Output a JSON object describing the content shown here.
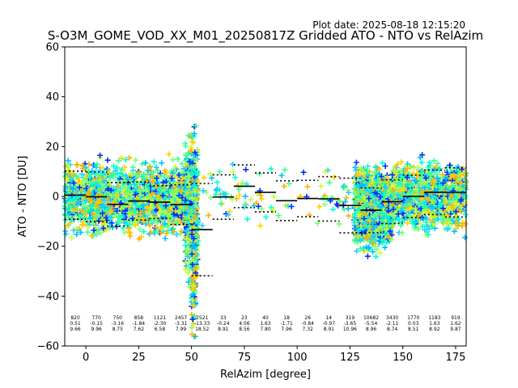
{
  "chart_data": {
    "type": "scatter",
    "plot_date": "Plot date: 2025-08-18 12:15:20",
    "title": "S-O3M_GOME_VOD_XX_M01_20250817Z Gridded ATO - NTO vs RelAzim",
    "xlabel": "RelAzim [degree]",
    "ylabel": "ATO - NTO [DU]",
    "xlim": [
      -10,
      180
    ],
    "ylim": [
      -60,
      60
    ],
    "xticks": [
      0,
      25,
      50,
      75,
      100,
      125,
      150,
      175
    ],
    "yticks": [
      -60,
      -40,
      -20,
      0,
      20,
      40,
      60
    ],
    "grid": false,
    "marker": "plus",
    "point_colors": [
      "#40ff90",
      "#80ff70",
      "#20d0ff",
      "#c0ff40",
      "#ffd000",
      "#ffb000",
      "#00c0ff",
      "#0030ff",
      "#00ffd0"
    ],
    "bins": [
      {
        "center": -5,
        "count": "820",
        "mean": "0.51",
        "std": "9.66"
      },
      {
        "center": 5,
        "count": "770",
        "mean": "-0.15",
        "std": "9.96"
      },
      {
        "center": 15,
        "count": "750",
        "mean": "-3.16",
        "std": "8.75"
      },
      {
        "center": 25,
        "count": "858",
        "mean": "-1.84",
        "std": "7.62"
      },
      {
        "center": 35,
        "count": "1121",
        "mean": "-2.30",
        "std": "6.58"
      },
      {
        "center": 45,
        "count": "2457",
        "mean": "-3.31",
        "std": "7.99"
      },
      {
        "center": 55,
        "count": "2521",
        "mean": "-13.33",
        "std": "18.52"
      },
      {
        "center": 65,
        "count": "33",
        "mean": "-0.24",
        "std": "8.91"
      },
      {
        "center": 75,
        "count": "23",
        "mean": "4.06",
        "std": "8.56"
      },
      {
        "center": 85,
        "count": "40",
        "mean": "1.63",
        "std": "7.80"
      },
      {
        "center": 95,
        "count": "18",
        "mean": "-1.71",
        "std": "7.96"
      },
      {
        "center": 105,
        "count": "26",
        "mean": "-0.84",
        "std": "7.32"
      },
      {
        "center": 115,
        "count": "14",
        "mean": "-0.97",
        "std": "8.91"
      },
      {
        "center": 125,
        "count": "319",
        "mean": "-3.65",
        "std": "10.96"
      },
      {
        "center": 135,
        "count": "10682",
        "mean": "-5.54",
        "std": "8.96"
      },
      {
        "center": 145,
        "count": "3430",
        "mean": "-2.11",
        "std": "8.74"
      },
      {
        "center": 155,
        "count": "1770",
        "mean": "0.03",
        "std": "8.51"
      },
      {
        "center": 165,
        "count": "1183",
        "mean": "1.63",
        "std": "8.92"
      },
      {
        "center": 175,
        "count": "919",
        "mean": "1.62",
        "std": "9.87"
      }
    ],
    "clusters": [
      {
        "x": [
          -10,
          48
        ],
        "y_mean": -1,
        "y_spread": 11,
        "n": 1600
      },
      {
        "x": [
          47,
          53
        ],
        "y_mean": -5,
        "y_spread": 22,
        "n": 600
      },
      {
        "x": [
          50,
          52
        ],
        "y_mean": -20,
        "y_spread": 30,
        "n": 200
      },
      {
        "x": [
          55,
          125
        ],
        "y_mean": 0,
        "y_spread": 10,
        "n": 110
      },
      {
        "x": [
          127,
          145
        ],
        "y_mean": -5,
        "y_spread": 12,
        "n": 1300
      },
      {
        "x": [
          145,
          180
        ],
        "y_mean": 0,
        "y_spread": 11,
        "n": 1000
      }
    ]
  }
}
